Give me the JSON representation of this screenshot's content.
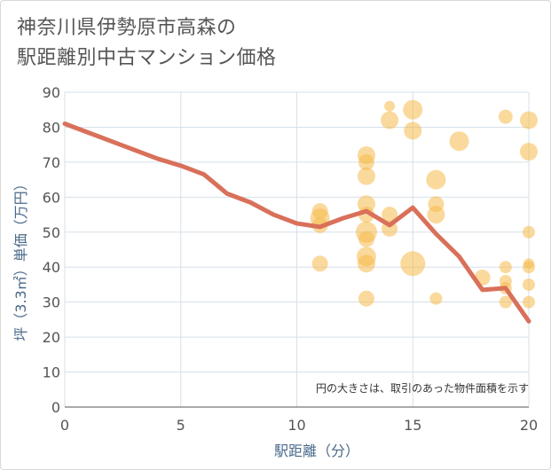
{
  "title_line1": "神奈川県伊勢原市高森の",
  "title_line2": "駅距離別中古マンション価格",
  "chart_data": {
    "type": "scatter",
    "title": "神奈川県伊勢原市高森の駅距離別中古マンション価格",
    "xlabel": "駅距離（分）",
    "ylabel": "坪（3.3㎡）単価（万円）",
    "xlim": [
      0,
      20
    ],
    "ylim": [
      0,
      90
    ],
    "xticks": [
      "0",
      "5",
      "10",
      "15",
      "20"
    ],
    "yticks": [
      "0",
      "10",
      "20",
      "30",
      "40",
      "50",
      "60",
      "70",
      "80",
      "90"
    ],
    "grid": true,
    "note": "円の大きさは、取引のあった物件面積を示す",
    "colors": {
      "bubble": "#f5b94a",
      "line": "#d9705a",
      "grid": "#d6e0ea"
    },
    "line_series": {
      "name": "",
      "x": [
        0,
        1,
        2,
        3,
        4,
        5,
        6,
        7,
        8,
        9,
        10,
        11,
        12,
        13,
        14,
        15,
        16,
        17,
        18,
        19,
        20
      ],
      "y": [
        81,
        78.5,
        76,
        73.5,
        71,
        69,
        66.5,
        61,
        58.5,
        55,
        52.5,
        51.5,
        54,
        56,
        52,
        57,
        49.5,
        43,
        33.5,
        34,
        24.5
      ]
    },
    "bubbles": [
      {
        "x": 11,
        "y": 56,
        "size": 9
      },
      {
        "x": 11,
        "y": 54,
        "size": 11
      },
      {
        "x": 11,
        "y": 52,
        "size": 9
      },
      {
        "x": 11,
        "y": 41,
        "size": 9
      },
      {
        "x": 13,
        "y": 72,
        "size": 10
      },
      {
        "x": 13,
        "y": 70,
        "size": 9
      },
      {
        "x": 13,
        "y": 66,
        "size": 10
      },
      {
        "x": 13,
        "y": 58,
        "size": 10
      },
      {
        "x": 13,
        "y": 55,
        "size": 9
      },
      {
        "x": 13,
        "y": 50,
        "size": 12
      },
      {
        "x": 13,
        "y": 48,
        "size": 9
      },
      {
        "x": 13,
        "y": 43,
        "size": 11
      },
      {
        "x": 13,
        "y": 41,
        "size": 10
      },
      {
        "x": 13,
        "y": 31,
        "size": 9
      },
      {
        "x": 14,
        "y": 86,
        "size": 6
      },
      {
        "x": 14,
        "y": 82,
        "size": 10
      },
      {
        "x": 14,
        "y": 55,
        "size": 9
      },
      {
        "x": 14,
        "y": 51,
        "size": 9
      },
      {
        "x": 15,
        "y": 85,
        "size": 11
      },
      {
        "x": 15,
        "y": 79,
        "size": 10
      },
      {
        "x": 15,
        "y": 41,
        "size": 14
      },
      {
        "x": 16,
        "y": 65,
        "size": 11
      },
      {
        "x": 16,
        "y": 58,
        "size": 9
      },
      {
        "x": 16,
        "y": 55,
        "size": 10
      },
      {
        "x": 16,
        "y": 31,
        "size": 7
      },
      {
        "x": 17,
        "y": 76,
        "size": 11
      },
      {
        "x": 18,
        "y": 37,
        "size": 9
      },
      {
        "x": 19,
        "y": 83,
        "size": 8
      },
      {
        "x": 19,
        "y": 40,
        "size": 7
      },
      {
        "x": 19,
        "y": 36,
        "size": 7
      },
      {
        "x": 19,
        "y": 34,
        "size": 7
      },
      {
        "x": 19,
        "y": 30,
        "size": 7
      },
      {
        "x": 20,
        "y": 82,
        "size": 10
      },
      {
        "x": 20,
        "y": 73,
        "size": 10
      },
      {
        "x": 20,
        "y": 50,
        "size": 7
      },
      {
        "x": 20,
        "y": 41,
        "size": 6
      },
      {
        "x": 20,
        "y": 40,
        "size": 7
      },
      {
        "x": 20,
        "y": 35,
        "size": 7
      },
      {
        "x": 20,
        "y": 30,
        "size": 7
      }
    ]
  }
}
